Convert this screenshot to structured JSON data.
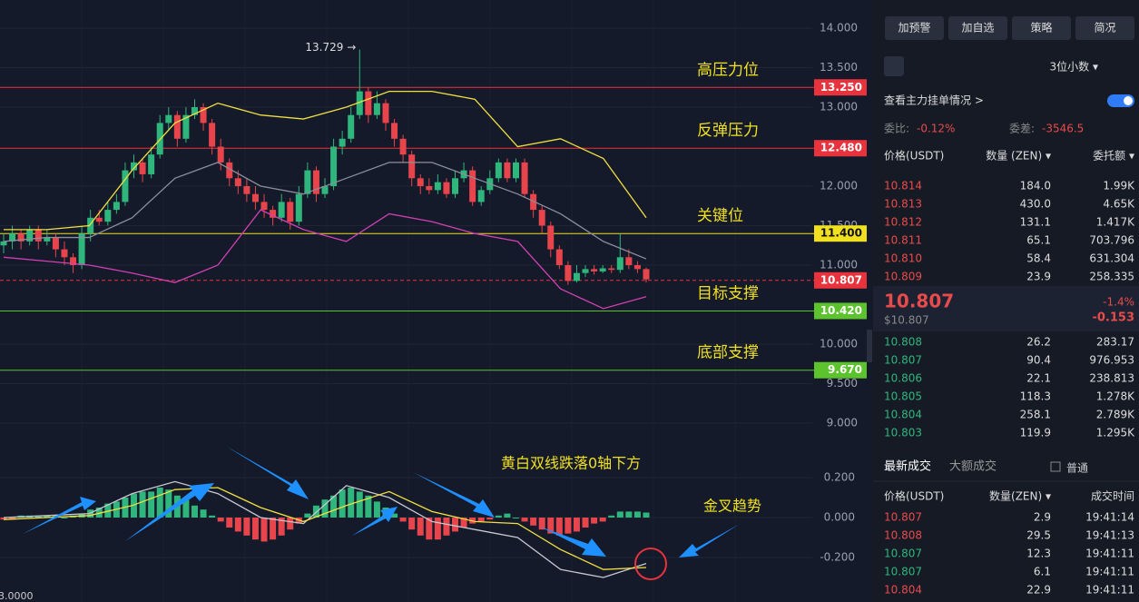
{
  "chart": {
    "yticks": [
      {
        "value": 14,
        "label": "14.000"
      },
      {
        "value": 13.5,
        "label": "13.500"
      },
      {
        "value": 13,
        "label": "13.000"
      },
      {
        "value": 12,
        "label": "12.000"
      },
      {
        "value": 11.5,
        "label": "11.500"
      },
      {
        "value": 11,
        "label": "11.000"
      },
      {
        "value": 10,
        "label": "10.000"
      },
      {
        "value": 9.5,
        "label": "9.500"
      },
      {
        "value": 9,
        "label": "9.000"
      }
    ],
    "levels": [
      {
        "value": 13.25,
        "label": "13.250",
        "name": "高压力位",
        "color": "#e8323c"
      },
      {
        "value": 12.48,
        "label": "12.480",
        "name": "反弹压力",
        "color": "#e8323c"
      },
      {
        "value": 11.4,
        "label": "11.400",
        "name": "关键位",
        "color": "#f0e020"
      },
      {
        "value": 10.42,
        "label": "10.420",
        "name": "目标支撑",
        "color": "#5cc22e"
      },
      {
        "value": 9.67,
        "label": "9.670",
        "name": "底部支撑",
        "color": "#5cc22e"
      }
    ],
    "last": {
      "value": 10.807,
      "label": "10.807",
      "color": "#e8323c"
    },
    "high": {
      "value": 13.729,
      "label": "13.729 →"
    },
    "candles": [
      [
        11.25,
        11.4,
        11.15,
        11.3
      ],
      [
        11.3,
        11.5,
        11.2,
        11.4
      ],
      [
        11.4,
        11.45,
        11.2,
        11.3
      ],
      [
        11.3,
        11.5,
        11.25,
        11.45
      ],
      [
        11.45,
        11.5,
        11.2,
        11.3
      ],
      [
        11.3,
        11.45,
        11.25,
        11.35
      ],
      [
        11.35,
        11.4,
        11.1,
        11.2
      ],
      [
        11.2,
        11.3,
        11.0,
        11.1
      ],
      [
        11.1,
        11.15,
        10.9,
        11.0
      ],
      [
        11.0,
        11.5,
        10.95,
        11.4
      ],
      [
        11.4,
        11.7,
        11.3,
        11.6
      ],
      [
        11.6,
        11.7,
        11.5,
        11.55
      ],
      [
        11.55,
        11.8,
        11.5,
        11.7
      ],
      [
        11.7,
        11.9,
        11.65,
        11.8
      ],
      [
        11.8,
        12.3,
        11.75,
        12.2
      ],
      [
        12.2,
        12.4,
        12.1,
        12.3
      ],
      [
        12.3,
        12.35,
        12.05,
        12.15
      ],
      [
        12.15,
        12.5,
        12.1,
        12.4
      ],
      [
        12.4,
        12.9,
        12.35,
        12.8
      ],
      [
        12.8,
        13.0,
        12.7,
        12.9
      ],
      [
        12.9,
        12.95,
        12.5,
        12.6
      ],
      [
        12.6,
        13.0,
        12.55,
        12.9
      ],
      [
        12.9,
        13.1,
        12.85,
        13.0
      ],
      [
        13.0,
        13.05,
        12.7,
        12.8
      ],
      [
        12.8,
        12.85,
        12.4,
        12.5
      ],
      [
        12.5,
        12.6,
        12.2,
        12.3
      ],
      [
        12.3,
        12.35,
        12.0,
        12.1
      ],
      [
        12.1,
        12.2,
        11.9,
        12.0
      ],
      [
        12.0,
        12.1,
        11.8,
        11.9
      ],
      [
        11.9,
        12.0,
        11.7,
        11.8
      ],
      [
        11.8,
        11.9,
        11.6,
        11.7
      ],
      [
        11.7,
        11.75,
        11.5,
        11.6
      ],
      [
        11.6,
        11.9,
        11.55,
        11.8
      ],
      [
        11.8,
        11.85,
        11.45,
        11.55
      ],
      [
        11.55,
        12.0,
        11.5,
        11.9
      ],
      [
        11.9,
        12.3,
        11.85,
        12.2
      ],
      [
        12.2,
        12.25,
        11.8,
        11.9
      ],
      [
        11.9,
        12.1,
        11.85,
        12.0
      ],
      [
        12.0,
        12.6,
        11.95,
        12.5
      ],
      [
        12.5,
        12.7,
        12.4,
        12.6
      ],
      [
        12.6,
        13.0,
        12.55,
        12.9
      ],
      [
        12.9,
        13.729,
        12.85,
        13.2
      ],
      [
        13.2,
        13.25,
        12.8,
        12.9
      ],
      [
        12.9,
        13.2,
        12.85,
        13.05
      ],
      [
        13.05,
        13.1,
        12.7,
        12.8
      ],
      [
        12.8,
        12.85,
        12.5,
        12.6
      ],
      [
        12.6,
        12.65,
        12.3,
        12.4
      ],
      [
        12.4,
        12.45,
        12.0,
        12.1
      ],
      [
        12.1,
        12.15,
        11.9,
        12.0
      ],
      [
        12.0,
        12.1,
        11.9,
        11.95
      ],
      [
        11.95,
        12.15,
        11.9,
        12.05
      ],
      [
        12.05,
        12.1,
        11.85,
        11.9
      ],
      [
        11.9,
        12.2,
        11.85,
        12.1
      ],
      [
        12.1,
        12.3,
        12.05,
        12.2
      ],
      [
        12.2,
        12.25,
        11.75,
        11.8
      ],
      [
        11.8,
        12.0,
        11.75,
        11.95
      ],
      [
        11.95,
        12.2,
        11.9,
        12.1
      ],
      [
        12.1,
        12.35,
        12.05,
        12.3
      ],
      [
        12.3,
        12.35,
        12.05,
        12.1
      ],
      [
        12.1,
        12.35,
        12.05,
        12.3
      ],
      [
        12.3,
        12.35,
        11.85,
        11.9
      ],
      [
        11.9,
        11.95,
        11.6,
        11.7
      ],
      [
        11.7,
        11.75,
        11.4,
        11.5
      ],
      [
        11.5,
        11.55,
        11.1,
        11.2
      ],
      [
        11.2,
        11.25,
        10.95,
        11.0
      ],
      [
        11.0,
        11.05,
        10.75,
        10.8
      ],
      [
        10.8,
        11.0,
        10.78,
        10.9
      ],
      [
        10.9,
        11.0,
        10.85,
        10.95
      ],
      [
        10.95,
        11.0,
        10.88,
        10.92
      ],
      [
        10.92,
        11.0,
        10.9,
        10.96
      ],
      [
        10.96,
        11.0,
        10.9,
        10.94
      ],
      [
        10.94,
        11.4,
        10.9,
        11.1
      ],
      [
        11.1,
        11.2,
        10.95,
        11.0
      ],
      [
        11.0,
        11.05,
        10.9,
        10.95
      ],
      [
        10.95,
        10.97,
        10.78,
        10.82
      ]
    ],
    "bands": [
      {
        "color": "#f0e040",
        "values": [
          11.45,
          11.45,
          11.5,
          12.2,
          12.8,
          13.05,
          12.9,
          12.85,
          13.0,
          13.2,
          13.2,
          13.1,
          12.5,
          12.6,
          12.35,
          11.6
        ]
      },
      {
        "color": "#8a8f9c",
        "values": [
          11.3,
          11.35,
          11.35,
          11.6,
          12.1,
          12.3,
          12.0,
          11.9,
          12.1,
          12.3,
          12.3,
          12.1,
          11.9,
          11.65,
          11.3,
          11.08
        ]
      },
      {
        "color": "#d040b0",
        "values": [
          11.1,
          11.05,
          11.0,
          10.9,
          10.78,
          11.0,
          11.7,
          11.45,
          11.3,
          11.65,
          11.55,
          11.4,
          11.3,
          10.7,
          10.45,
          10.6
        ]
      }
    ],
    "macd_ticks": [
      {
        "value": 0.2,
        "label": "0.200"
      },
      {
        "value": 0,
        "label": "0.000"
      },
      {
        "value": -0.2,
        "label": "-0.200"
      }
    ],
    "macd_hist": [
      -0.01,
      -0.01,
      0.01,
      0.01,
      0.005,
      0.01,
      0.01,
      0.0,
      0.01,
      0.02,
      0.04,
      0.05,
      0.07,
      0.08,
      0.1,
      0.12,
      0.13,
      0.13,
      0.15,
      0.14,
      0.11,
      0.09,
      0.06,
      0.04,
      0.01,
      -0.02,
      -0.05,
      -0.07,
      -0.09,
      -0.11,
      -0.12,
      -0.11,
      -0.09,
      -0.06,
      -0.03,
      0.02,
      0.06,
      0.09,
      0.11,
      0.14,
      0.15,
      0.13,
      0.11,
      0.08,
      0.05,
      0.02,
      -0.02,
      -0.06,
      -0.09,
      -0.11,
      -0.11,
      -0.09,
      -0.07,
      -0.05,
      -0.03,
      -0.02,
      -0.01,
      0.01,
      0.02,
      0.0,
      -0.02,
      -0.04,
      -0.06,
      -0.08,
      -0.09,
      -0.08,
      -0.07,
      -0.05,
      -0.03,
      -0.02,
      0.01,
      0.03,
      0.03,
      0.03,
      0.025
    ],
    "macd_lines": [
      {
        "color": "#c8c8d0",
        "values": [
          0.0,
          0.01,
          0.02,
          0.12,
          0.18,
          0.12,
          0.0,
          -0.03,
          0.16,
          0.1,
          -0.02,
          -0.06,
          -0.1,
          -0.26,
          -0.3,
          -0.23
        ]
      },
      {
        "color": "#f0e040",
        "values": [
          -0.01,
          0.0,
          0.01,
          0.06,
          0.14,
          0.15,
          0.05,
          -0.02,
          0.06,
          0.13,
          0.03,
          -0.02,
          -0.03,
          -0.16,
          -0.26,
          -0.25
        ]
      }
    ],
    "note1": "黄白双线跌落0轴下方",
    "note2": "金叉趋势",
    "corner": "3.0000"
  },
  "panel": {
    "buttons": [
      "加预警",
      "加自选",
      "策略",
      "简况"
    ],
    "decimals": "3位小数 ▾",
    "main_orders": "查看主力挂单情况 >",
    "ratio_label": "委比:",
    "ratio": "-0.12%",
    "diff_label": "委差:",
    "diff": "-3546.5",
    "book_header": [
      "价格(USDT)",
      "数量 (ZEN) ▾",
      "委托额 ▾"
    ],
    "asks": [
      [
        "10.814",
        "184.0",
        "1.99K"
      ],
      [
        "10.813",
        "430.0",
        "4.65K"
      ],
      [
        "10.812",
        "131.1",
        "1.417K"
      ],
      [
        "10.811",
        "65.1",
        "703.796"
      ],
      [
        "10.810",
        "58.4",
        "631.304"
      ],
      [
        "10.809",
        "23.9",
        "258.335"
      ]
    ],
    "price": "10.807",
    "price_usd": "$10.807",
    "change_pct": "-1.4%",
    "change": "-0.153",
    "bids": [
      [
        "10.808",
        "26.2",
        "283.17"
      ],
      [
        "10.807",
        "90.4",
        "976.953"
      ],
      [
        "10.806",
        "22.1",
        "238.813"
      ],
      [
        "10.805",
        "118.3",
        "1.278K"
      ],
      [
        "10.804",
        "258.1",
        "2.789K"
      ],
      [
        "10.803",
        "119.9",
        "1.295K"
      ]
    ],
    "tab_latest": "最新成交",
    "tab_large": "大额成交",
    "normal": "普通",
    "trade_header": [
      "价格(USDT)",
      "数量(ZEN) ▾",
      "成交时间"
    ],
    "trades": [
      {
        "cells": [
          "10.807",
          "2.9",
          "19:41:14"
        ],
        "color": "#e84b4b"
      },
      {
        "cells": [
          "10.808",
          "29.5",
          "19:41:13"
        ],
        "color": "#e84b4b"
      },
      {
        "cells": [
          "10.807",
          "12.3",
          "19:41:11"
        ],
        "color": "#2fb67c"
      },
      {
        "cells": [
          "10.807",
          "6.1",
          "19:41:11"
        ],
        "color": "#2fb67c"
      },
      {
        "cells": [
          "10.804",
          "22.9",
          "19:41:11"
        ],
        "color": "#e84b4b"
      }
    ]
  }
}
